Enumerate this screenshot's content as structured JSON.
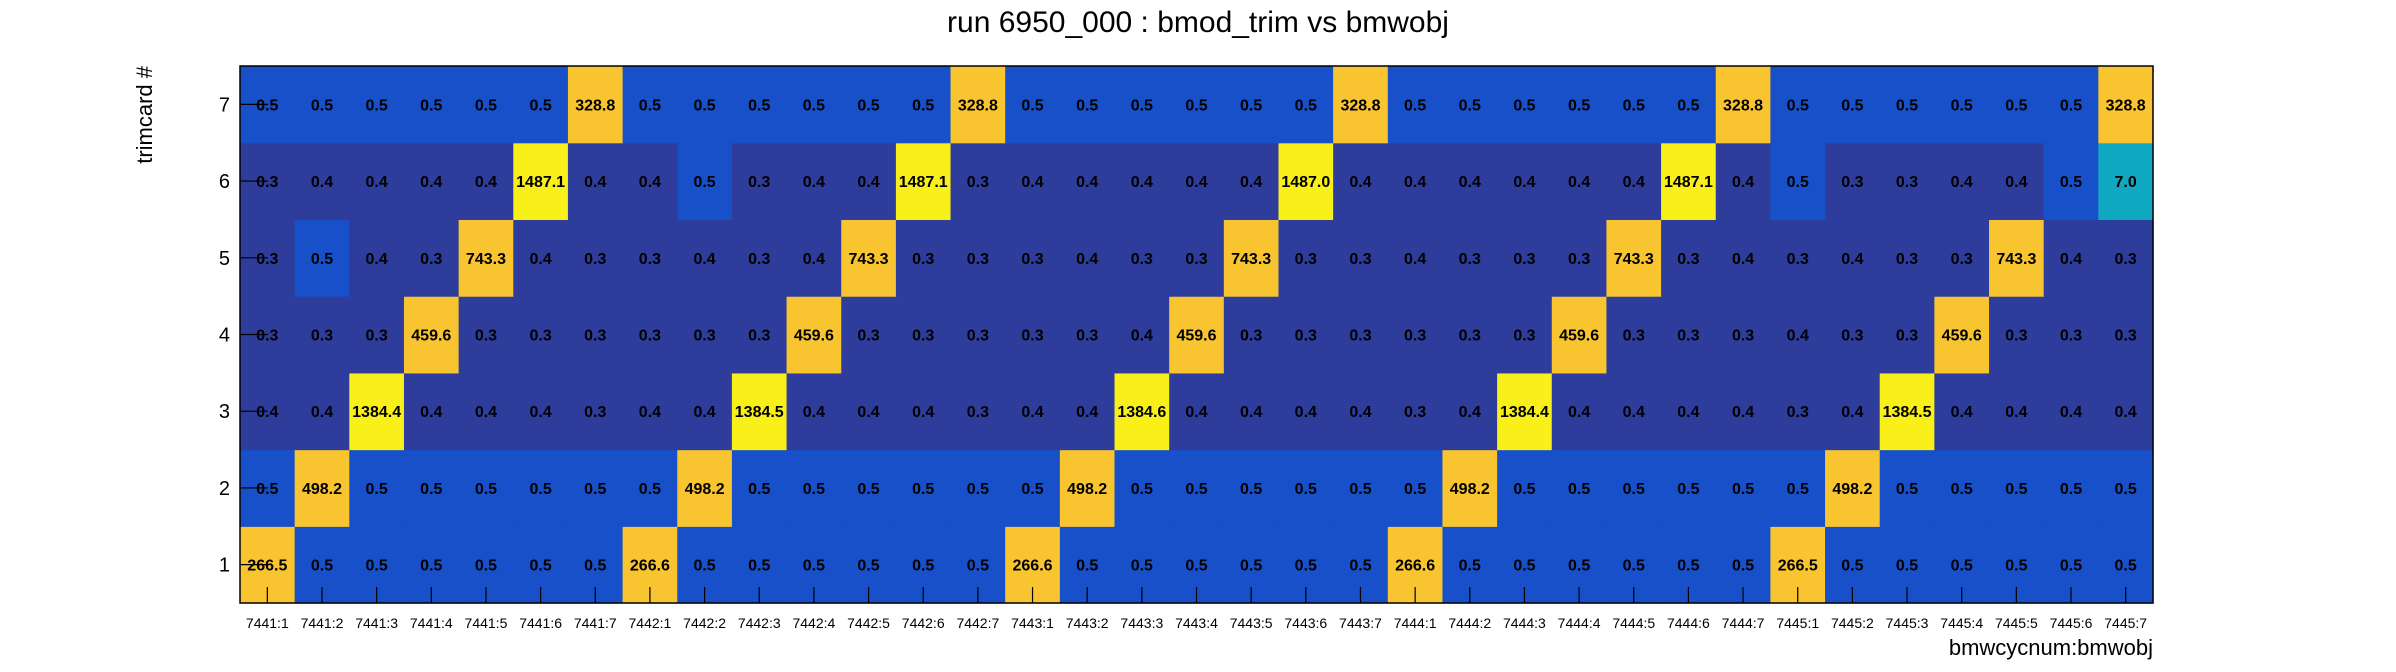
{
  "chart_data": {
    "type": "heatmap",
    "title": "run 6950_000 : bmod_trim vs bmwobj",
    "xlabel": "bmwcycnum:bmwobj",
    "ylabel": "trimcard #",
    "x_categories": [
      "7441:1",
      "7441:2",
      "7441:3",
      "7441:4",
      "7441:5",
      "7441:6",
      "7441:7",
      "7442:1",
      "7442:2",
      "7442:3",
      "7442:4",
      "7442:5",
      "7442:6",
      "7442:7",
      "7443:1",
      "7443:2",
      "7443:3",
      "7443:4",
      "7443:5",
      "7443:6",
      "7443:7",
      "7444:1",
      "7444:2",
      "7444:3",
      "7444:4",
      "7444:5",
      "7444:6",
      "7444:7",
      "7445:1",
      "7445:2",
      "7445:3",
      "7445:4",
      "7445:5",
      "7445:6",
      "7445:7"
    ],
    "y_categories": [
      "1",
      "2",
      "3",
      "4",
      "5",
      "6",
      "7"
    ],
    "values": [
      [
        "266.5",
        "0.5",
        "0.5",
        "0.5",
        "0.5",
        "0.5",
        "0.5",
        "266.6",
        "0.5",
        "0.5",
        "0.5",
        "0.5",
        "0.5",
        "0.5",
        "266.6",
        "0.5",
        "0.5",
        "0.5",
        "0.5",
        "0.5",
        "0.5",
        "266.6",
        "0.5",
        "0.5",
        "0.5",
        "0.5",
        "0.5",
        "0.5",
        "266.5",
        "0.5",
        "0.5",
        "0.5",
        "0.5",
        "0.5",
        "0.5"
      ],
      [
        "0.5",
        "498.2",
        "0.5",
        "0.5",
        "0.5",
        "0.5",
        "0.5",
        "0.5",
        "498.2",
        "0.5",
        "0.5",
        "0.5",
        "0.5",
        "0.5",
        "0.5",
        "498.2",
        "0.5",
        "0.5",
        "0.5",
        "0.5",
        "0.5",
        "0.5",
        "498.2",
        "0.5",
        "0.5",
        "0.5",
        "0.5",
        "0.5",
        "0.5",
        "498.2",
        "0.5",
        "0.5",
        "0.5",
        "0.5",
        "0.5"
      ],
      [
        "0.4",
        "0.4",
        "1384.4",
        "0.4",
        "0.4",
        "0.4",
        "0.3",
        "0.4",
        "0.4",
        "1384.5",
        "0.4",
        "0.4",
        "0.4",
        "0.3",
        "0.4",
        "0.4",
        "1384.6",
        "0.4",
        "0.4",
        "0.4",
        "0.4",
        "0.3",
        "0.4",
        "1384.4",
        "0.4",
        "0.4",
        "0.4",
        "0.4",
        "0.3",
        "0.4",
        "1384.5",
        "0.4",
        "0.4",
        "0.4",
        "0.4"
      ],
      [
        "0.3",
        "0.3",
        "0.3",
        "459.6",
        "0.3",
        "0.3",
        "0.3",
        "0.3",
        "0.3",
        "0.3",
        "459.6",
        "0.3",
        "0.3",
        "0.3",
        "0.3",
        "0.3",
        "0.4",
        "459.6",
        "0.3",
        "0.3",
        "0.3",
        "0.3",
        "0.3",
        "0.3",
        "459.6",
        "0.3",
        "0.3",
        "0.3",
        "0.4",
        "0.3",
        "0.3",
        "459.6",
        "0.3",
        "0.3",
        "0.3"
      ],
      [
        "0.3",
        "0.5",
        "0.4",
        "0.3",
        "743.3",
        "0.4",
        "0.3",
        "0.3",
        "0.4",
        "0.3",
        "0.4",
        "743.3",
        "0.3",
        "0.3",
        "0.3",
        "0.4",
        "0.3",
        "0.3",
        "743.3",
        "0.3",
        "0.3",
        "0.4",
        "0.3",
        "0.3",
        "0.3",
        "743.3",
        "0.3",
        "0.4",
        "0.3",
        "0.4",
        "0.3",
        "0.3",
        "743.3",
        "0.4",
        "0.3"
      ],
      [
        "0.3",
        "0.4",
        "0.4",
        "0.4",
        "0.4",
        "1487.1",
        "0.4",
        "0.4",
        "0.5",
        "0.3",
        "0.4",
        "0.4",
        "1487.1",
        "0.3",
        "0.4",
        "0.4",
        "0.4",
        "0.4",
        "0.4",
        "1487.0",
        "0.4",
        "0.4",
        "0.4",
        "0.4",
        "0.4",
        "0.4",
        "1487.1",
        "0.4",
        "0.5",
        "0.3",
        "0.3",
        "0.4",
        "0.4",
        "0.5",
        "7.0"
      ],
      [
        "0.5",
        "0.5",
        "0.5",
        "0.5",
        "0.5",
        "0.5",
        "328.8",
        "0.5",
        "0.5",
        "0.5",
        "0.5",
        "0.5",
        "0.5",
        "328.8",
        "0.5",
        "0.5",
        "0.5",
        "0.5",
        "0.5",
        "0.5",
        "328.8",
        "0.5",
        "0.5",
        "0.5",
        "0.5",
        "0.5",
        "0.5",
        "328.8",
        "0.5",
        "0.5",
        "0.5",
        "0.5",
        "0.5",
        "0.5",
        "328.8"
      ]
    ],
    "colors": {
      "dark": "#2e3d9c",
      "blue": "#1750c8",
      "teal": "#10a8c0",
      "orange": "#f8c430",
      "yellow": "#f8f018",
      "frame": "#000000"
    }
  }
}
